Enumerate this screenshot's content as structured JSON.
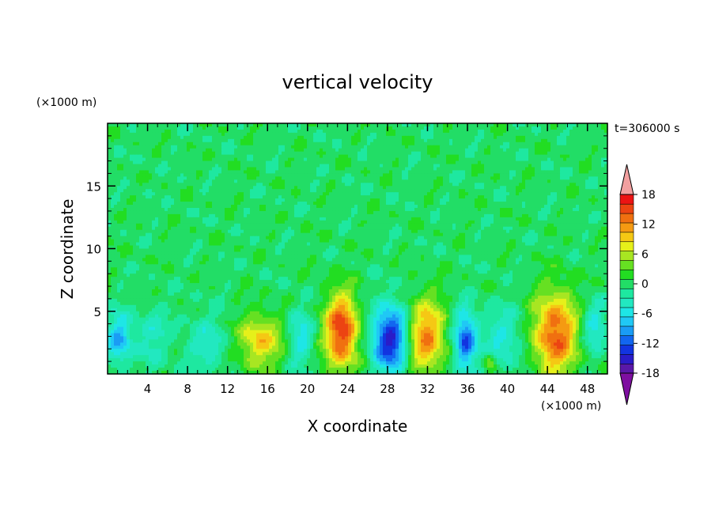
{
  "chart_data": {
    "type": "heatmap",
    "title": "vertical velocity",
    "xlabel": "X coordinate",
    "ylabel": "Z coordinate",
    "x_unit": "(×1000 m)",
    "y_unit": "(×1000 m)",
    "time_label": "t=306000 s",
    "xlim": [
      0,
      50
    ],
    "ylim": [
      0,
      20
    ],
    "x_ticks": [
      4,
      8,
      12,
      16,
      20,
      24,
      28,
      32,
      36,
      40,
      44,
      48
    ],
    "y_ticks": [
      5,
      10,
      15
    ],
    "colorbar": {
      "range": [
        -20,
        20
      ],
      "step": 2,
      "labels": [
        18,
        12,
        6,
        0,
        -6,
        -12,
        -18
      ],
      "colors": [
        "#7e0fa0",
        "#5a18a8",
        "#2a1cc8",
        "#1234e0",
        "#1266f0",
        "#1a9cf5",
        "#20c8f5",
        "#1ee6e6",
        "#22e8c0",
        "#1ee8a0",
        "#22dd66",
        "#22dd22",
        "#66e022",
        "#a8e622",
        "#e6f01a",
        "#f5c814",
        "#f59a12",
        "#f07010",
        "#ec4412",
        "#ec1414",
        "#f2a0a0"
      ]
    },
    "field": {
      "background": 1,
      "features": [
        {
          "x": 23.4,
          "z": 3.4,
          "peak": 17,
          "sx": 1.2,
          "sz": 2.1
        },
        {
          "x": 31.8,
          "z": 3.0,
          "peak": 13,
          "sx": 1.4,
          "sz": 2.1
        },
        {
          "x": 44.8,
          "z": 3.2,
          "peak": 15,
          "sx": 1.6,
          "sz": 2.4
        },
        {
          "x": 15.2,
          "z": 2.6,
          "peak": 10,
          "sx": 1.6,
          "sz": 1.5
        },
        {
          "x": 28.3,
          "z": 2.8,
          "peak": -16,
          "sx": 1.3,
          "sz": 1.9
        },
        {
          "x": 35.8,
          "z": 2.6,
          "peak": -13,
          "sx": 0.8,
          "sz": 1.7
        },
        {
          "x": 1.2,
          "z": 2.8,
          "peak": -9,
          "sx": 0.9,
          "sz": 1.4
        },
        {
          "x": 10.0,
          "z": 2.3,
          "peak": -4,
          "sx": 1.6,
          "sz": 1.8
        },
        {
          "x": 19.3,
          "z": 3.0,
          "peak": -6,
          "sx": 0.9,
          "sz": 1.6
        },
        {
          "x": 39.6,
          "z": 2.8,
          "peak": -5,
          "sx": 1.5,
          "sz": 1.8
        },
        {
          "x": 48.6,
          "z": 3.8,
          "peak": -6,
          "sx": 0.9,
          "sz": 1.5
        },
        {
          "x": 4.5,
          "z": 3.0,
          "peak": -4,
          "sx": 1.2,
          "sz": 1.6
        },
        {
          "x": 38.2,
          "z": 1.0,
          "peak": 7,
          "sx": 0.4,
          "sz": 0.5
        }
      ]
    }
  }
}
